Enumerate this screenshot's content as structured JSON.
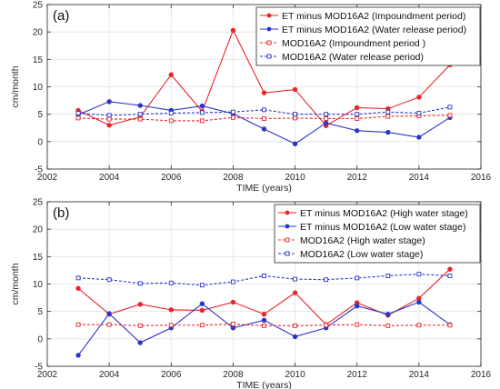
{
  "chart_data": [
    {
      "type": "line",
      "panel_label": "(a)",
      "xlabel": "TIME (years)",
      "ylabel": "cm/month",
      "xlim": [
        2002,
        2016
      ],
      "ylim": [
        -5,
        25
      ],
      "xticks": [
        2002,
        2004,
        2006,
        2008,
        2010,
        2012,
        2014,
        2016
      ],
      "yticks": [
        -5,
        0,
        5,
        10,
        15,
        20,
        25
      ],
      "grid": true,
      "legend_position": "top-right",
      "x": [
        2003,
        2004,
        2005,
        2006,
        2007,
        2008,
        2009,
        2010,
        2011,
        2012,
        2013,
        2014,
        2015
      ],
      "series": [
        {
          "name": "ET minus MOD16A2 (Impoundment period)",
          "color": "#e8262a",
          "line": "solid",
          "marker": "filled-circle",
          "values": [
            5.7,
            3.0,
            4.5,
            12.2,
            5.5,
            20.3,
            8.9,
            9.5,
            2.9,
            6.2,
            6.0,
            8.1,
            14.0
          ]
        },
        {
          "name": "ET minus MOD16A2 (Water release period)",
          "color": "#2b35c8",
          "line": "solid",
          "marker": "filled-circle",
          "values": [
            4.9,
            7.3,
            6.6,
            5.7,
            6.5,
            5.1,
            2.3,
            -0.4,
            3.4,
            2.0,
            1.7,
            0.8,
            4.4
          ]
        },
        {
          "name": "MOD16A2 (Impoundment period )",
          "color": "#e8262a",
          "line": "dashed",
          "marker": "open-square",
          "values": [
            4.3,
            4.1,
            4.1,
            3.8,
            3.8,
            4.4,
            4.2,
            4.3,
            4.2,
            4.2,
            4.6,
            4.7,
            4.8
          ]
        },
        {
          "name": "MOD16A2 (Water release period)",
          "color": "#2b35c8",
          "line": "dashed",
          "marker": "open-square",
          "values": [
            5.2,
            4.8,
            5.0,
            5.2,
            5.3,
            5.4,
            5.8,
            5.0,
            5.0,
            5.0,
            5.4,
            5.2,
            6.3
          ]
        }
      ]
    },
    {
      "type": "line",
      "panel_label": "(b)",
      "xlabel": "TIME (years)",
      "ylabel": "cm/month",
      "xlim": [
        2002,
        2016
      ],
      "ylim": [
        -5,
        25
      ],
      "xticks": [
        2002,
        2004,
        2006,
        2008,
        2010,
        2012,
        2014,
        2016
      ],
      "yticks": [
        -5,
        0,
        5,
        10,
        15,
        20,
        25
      ],
      "grid": true,
      "legend_position": "top-right",
      "x": [
        2003,
        2004,
        2005,
        2006,
        2007,
        2008,
        2009,
        2010,
        2011,
        2012,
        2013,
        2014,
        2015
      ],
      "series": [
        {
          "name": "ET minus MOD16A2 (High water stage)",
          "color": "#e8262a",
          "line": "solid",
          "marker": "filled-circle",
          "values": [
            9.2,
            4.5,
            6.3,
            5.3,
            5.2,
            6.7,
            4.5,
            8.4,
            2.6,
            6.6,
            4.3,
            7.4,
            12.7
          ]
        },
        {
          "name": "ET minus MOD16A2 (Low water stage)",
          "color": "#2b35c8",
          "line": "solid",
          "marker": "filled-circle",
          "values": [
            -3.0,
            4.6,
            -0.7,
            2.0,
            6.4,
            2.0,
            3.4,
            0.4,
            2.0,
            6.0,
            4.5,
            6.7,
            2.6
          ]
        },
        {
          "name": "MOD16A2 (High water stage)",
          "color": "#e8262a",
          "line": "dashed",
          "marker": "open-square",
          "values": [
            2.6,
            2.6,
            2.4,
            2.5,
            2.5,
            2.7,
            2.4,
            2.4,
            2.5,
            2.6,
            2.4,
            2.5,
            2.5
          ]
        },
        {
          "name": "MOD16A2 (Low water stage)",
          "color": "#2b35c8",
          "line": "dashed",
          "marker": "open-square",
          "values": [
            11.1,
            10.8,
            10.1,
            10.2,
            9.8,
            10.4,
            11.5,
            10.9,
            10.8,
            11.1,
            11.5,
            11.8,
            11.5
          ]
        }
      ]
    }
  ]
}
